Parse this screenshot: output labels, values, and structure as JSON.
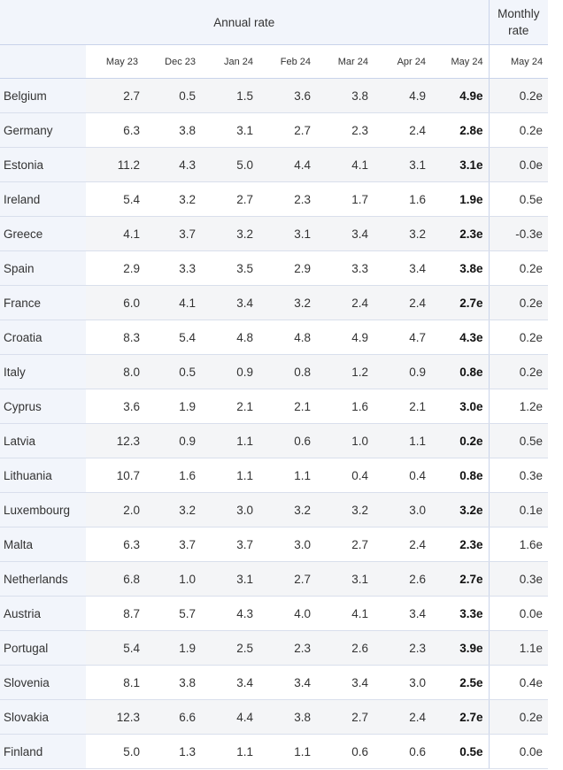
{
  "header": {
    "annual_label": "Annual rate",
    "monthly_label_line1": "Monthly",
    "monthly_label_line2": "rate",
    "columns": [
      "May 23",
      "Dec 23",
      "Jan 24",
      "Feb 24",
      "Mar 24",
      "Apr 24",
      "May 24",
      "May 24"
    ]
  },
  "rows": [
    {
      "country": "Belgium",
      "values": [
        "2.7",
        "0.5",
        "1.5",
        "3.6",
        "3.8",
        "4.9",
        "4.9e",
        "0.2e"
      ]
    },
    {
      "country": "Germany",
      "values": [
        "6.3",
        "3.8",
        "3.1",
        "2.7",
        "2.3",
        "2.4",
        "2.8e",
        "0.2e"
      ]
    },
    {
      "country": "Estonia",
      "values": [
        "11.2",
        "4.3",
        "5.0",
        "4.4",
        "4.1",
        "3.1",
        "3.1e",
        "0.0e"
      ]
    },
    {
      "country": "Ireland",
      "values": [
        "5.4",
        "3.2",
        "2.7",
        "2.3",
        "1.7",
        "1.6",
        "1.9e",
        "0.5e"
      ]
    },
    {
      "country": "Greece",
      "values": [
        "4.1",
        "3.7",
        "3.2",
        "3.1",
        "3.4",
        "3.2",
        "2.3e",
        "-0.3e"
      ]
    },
    {
      "country": "Spain",
      "values": [
        "2.9",
        "3.3",
        "3.5",
        "2.9",
        "3.3",
        "3.4",
        "3.8e",
        "0.2e"
      ]
    },
    {
      "country": "France",
      "values": [
        "6.0",
        "4.1",
        "3.4",
        "3.2",
        "2.4",
        "2.4",
        "2.7e",
        "0.2e"
      ]
    },
    {
      "country": "Croatia",
      "values": [
        "8.3",
        "5.4",
        "4.8",
        "4.8",
        "4.9",
        "4.7",
        "4.3e",
        "0.2e"
      ]
    },
    {
      "country": "Italy",
      "values": [
        "8.0",
        "0.5",
        "0.9",
        "0.8",
        "1.2",
        "0.9",
        "0.8e",
        "0.2e"
      ]
    },
    {
      "country": "Cyprus",
      "values": [
        "3.6",
        "1.9",
        "2.1",
        "2.1",
        "1.6",
        "2.1",
        "3.0e",
        "1.2e"
      ]
    },
    {
      "country": "Latvia",
      "values": [
        "12.3",
        "0.9",
        "1.1",
        "0.6",
        "1.0",
        "1.1",
        "0.2e",
        "0.5e"
      ]
    },
    {
      "country": "Lithuania",
      "values": [
        "10.7",
        "1.6",
        "1.1",
        "1.1",
        "0.4",
        "0.4",
        "0.8e",
        "0.3e"
      ]
    },
    {
      "country": "Luxembourg",
      "values": [
        "2.0",
        "3.2",
        "3.0",
        "3.2",
        "3.2",
        "3.0",
        "3.2e",
        "0.1e"
      ]
    },
    {
      "country": "Malta",
      "values": [
        "6.3",
        "3.7",
        "3.7",
        "3.0",
        "2.7",
        "2.4",
        "2.3e",
        "1.6e"
      ]
    },
    {
      "country": "Netherlands",
      "values": [
        "6.8",
        "1.0",
        "3.1",
        "2.7",
        "3.1",
        "2.6",
        "2.7e",
        "0.3e"
      ]
    },
    {
      "country": "Austria",
      "values": [
        "8.7",
        "5.7",
        "4.3",
        "4.0",
        "4.1",
        "3.4",
        "3.3e",
        "0.0e"
      ]
    },
    {
      "country": "Portugal",
      "values": [
        "5.4",
        "1.9",
        "2.5",
        "2.3",
        "2.6",
        "2.3",
        "3.9e",
        "1.1e"
      ]
    },
    {
      "country": "Slovenia",
      "values": [
        "8.1",
        "3.8",
        "3.4",
        "3.4",
        "3.4",
        "3.0",
        "2.5e",
        "0.4e"
      ]
    },
    {
      "country": "Slovakia",
      "values": [
        "12.3",
        "6.6",
        "4.4",
        "3.8",
        "2.7",
        "2.4",
        "2.7e",
        "0.2e"
      ]
    },
    {
      "country": "Finland",
      "values": [
        "5.0",
        "1.3",
        "1.1",
        "1.1",
        "0.6",
        "0.6",
        "0.5e",
        "0.0e"
      ]
    }
  ]
}
